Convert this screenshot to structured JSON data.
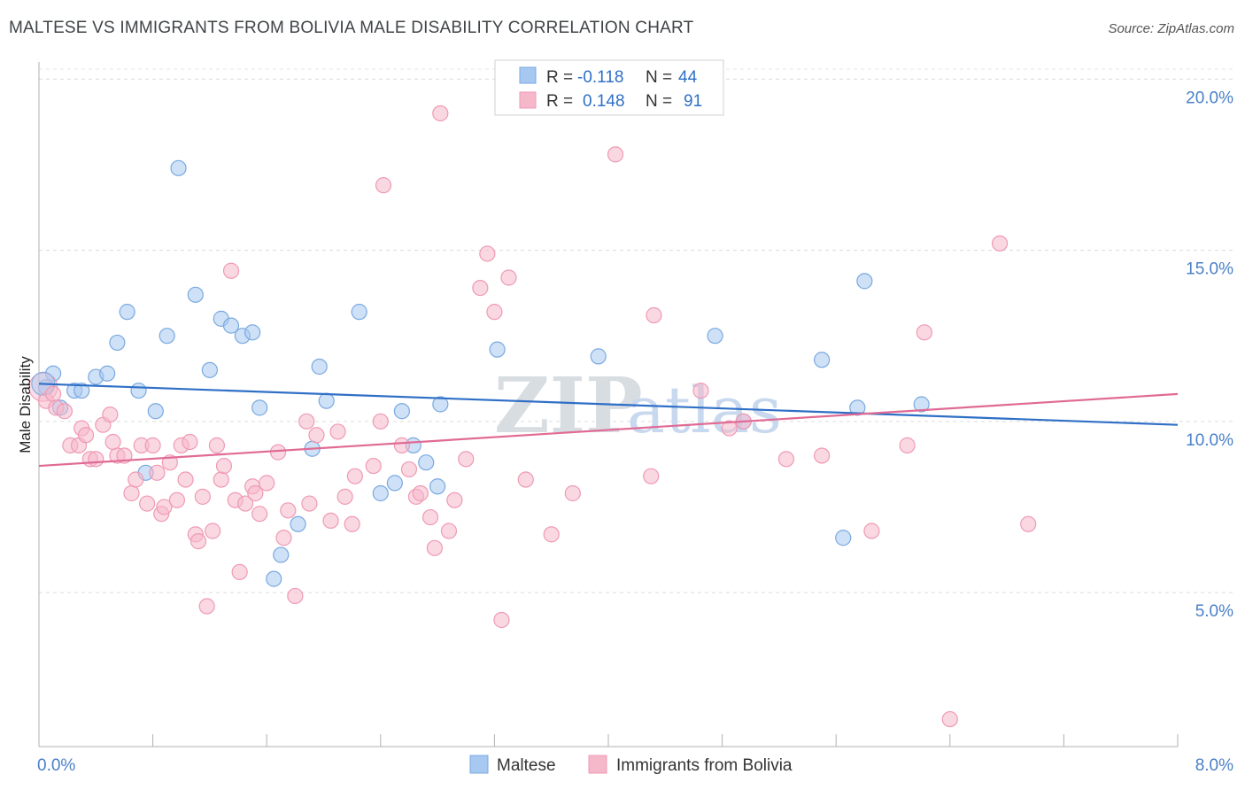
{
  "title": "MALTESE VS IMMIGRANTS FROM BOLIVIA MALE DISABILITY CORRELATION CHART",
  "source": "Source: ZipAtlas.com",
  "watermark": {
    "zip": "ZIP",
    "atlas": "atlas"
  },
  "chart_data": {
    "type": "scatter",
    "xlabel": "",
    "ylabel": "Male Disability",
    "xlim": [
      0,
      8
    ],
    "ylim": [
      0.5,
      20.5
    ],
    "x_tick_labels": [
      "0.0%",
      "8.0%"
    ],
    "y_ticks": [
      {
        "value": 5,
        "label": "5.0%"
      },
      {
        "value": 10,
        "label": "10.0%"
      },
      {
        "value": 15,
        "label": "15.0%"
      },
      {
        "value": 20,
        "label": "20.0%"
      }
    ],
    "grid": "horizontal-dashed",
    "legend": {
      "placement": "top-center",
      "entries": [
        {
          "r_label": "R =",
          "r_value": "-0.118",
          "n_label": "N =",
          "n_value": "44"
        },
        {
          "r_label": "R =",
          "r_value": "0.148",
          "n_label": "N =",
          "n_value": "91"
        }
      ]
    },
    "series": [
      {
        "name": "Maltese",
        "color": "#a7c8f0",
        "stroke": "#7aa9e0",
        "trend_color": "#2f6fc6",
        "trend": [
          [
            0,
            11.1
          ],
          [
            8,
            9.9
          ]
        ],
        "points": [
          [
            0.05,
            11.0
          ],
          [
            0.1,
            11.4
          ],
          [
            0.15,
            10.4
          ],
          [
            0.25,
            10.9
          ],
          [
            0.3,
            10.9
          ],
          [
            0.4,
            11.3
          ],
          [
            0.48,
            11.4
          ],
          [
            0.55,
            12.3
          ],
          [
            0.62,
            13.2
          ],
          [
            0.7,
            10.9
          ],
          [
            0.75,
            8.5
          ],
          [
            0.82,
            10.3
          ],
          [
            0.9,
            12.5
          ],
          [
            0.98,
            17.4
          ],
          [
            1.1,
            13.7
          ],
          [
            1.2,
            11.5
          ],
          [
            1.28,
            13.0
          ],
          [
            1.35,
            12.8
          ],
          [
            1.43,
            12.5
          ],
          [
            1.5,
            12.6
          ],
          [
            1.55,
            10.4
          ],
          [
            1.65,
            5.4
          ],
          [
            1.7,
            6.1
          ],
          [
            1.82,
            7.0
          ],
          [
            1.92,
            9.2
          ],
          [
            1.97,
            11.6
          ],
          [
            2.02,
            10.6
          ],
          [
            2.25,
            13.2
          ],
          [
            2.4,
            7.9
          ],
          [
            2.5,
            8.2
          ],
          [
            2.55,
            10.3
          ],
          [
            2.63,
            9.3
          ],
          [
            2.72,
            8.8
          ],
          [
            2.8,
            8.1
          ],
          [
            2.82,
            10.5
          ],
          [
            3.22,
            12.1
          ],
          [
            3.93,
            11.9
          ],
          [
            4.75,
            12.5
          ],
          [
            4.95,
            10.0
          ],
          [
            5.5,
            11.8
          ],
          [
            5.65,
            6.6
          ],
          [
            5.75,
            10.4
          ],
          [
            5.8,
            14.1
          ],
          [
            6.2,
            10.5
          ]
        ]
      },
      {
        "name": "Immigrants from Bolivia",
        "color": "#f5b8cb",
        "stroke": "#ef9ab5",
        "trend_color": "#e06a94",
        "trend": [
          [
            0,
            8.7
          ],
          [
            8,
            10.8
          ]
        ],
        "points": [
          [
            0.05,
            10.6
          ],
          [
            0.1,
            10.8
          ],
          [
            0.12,
            10.4
          ],
          [
            0.18,
            10.3
          ],
          [
            0.22,
            9.3
          ],
          [
            0.28,
            9.3
          ],
          [
            0.3,
            9.8
          ],
          [
            0.33,
            9.6
          ],
          [
            0.36,
            8.9
          ],
          [
            0.4,
            8.9
          ],
          [
            0.45,
            9.9
          ],
          [
            0.5,
            10.2
          ],
          [
            0.52,
            9.4
          ],
          [
            0.55,
            9.0
          ],
          [
            0.6,
            9.0
          ],
          [
            0.65,
            7.9
          ],
          [
            0.68,
            8.3
          ],
          [
            0.72,
            9.3
          ],
          [
            0.76,
            7.6
          ],
          [
            0.8,
            9.3
          ],
          [
            0.83,
            8.5
          ],
          [
            0.86,
            7.3
          ],
          [
            0.88,
            7.5
          ],
          [
            0.92,
            8.8
          ],
          [
            0.97,
            7.7
          ],
          [
            1.0,
            9.3
          ],
          [
            1.03,
            8.3
          ],
          [
            1.06,
            9.4
          ],
          [
            1.1,
            6.7
          ],
          [
            1.12,
            6.5
          ],
          [
            1.15,
            7.8
          ],
          [
            1.18,
            4.6
          ],
          [
            1.22,
            6.8
          ],
          [
            1.25,
            9.3
          ],
          [
            1.28,
            8.3
          ],
          [
            1.3,
            8.7
          ],
          [
            1.35,
            14.4
          ],
          [
            1.38,
            7.7
          ],
          [
            1.41,
            5.6
          ],
          [
            1.45,
            7.6
          ],
          [
            1.5,
            8.1
          ],
          [
            1.52,
            7.9
          ],
          [
            1.55,
            7.3
          ],
          [
            1.6,
            8.2
          ],
          [
            1.68,
            9.1
          ],
          [
            1.72,
            6.6
          ],
          [
            1.75,
            7.4
          ],
          [
            1.8,
            4.9
          ],
          [
            1.88,
            10.0
          ],
          [
            1.9,
            7.6
          ],
          [
            1.95,
            9.6
          ],
          [
            2.05,
            7.1
          ],
          [
            2.1,
            9.7
          ],
          [
            2.15,
            7.8
          ],
          [
            2.2,
            7.0
          ],
          [
            2.22,
            8.4
          ],
          [
            2.35,
            8.7
          ],
          [
            2.4,
            10.0
          ],
          [
            2.42,
            16.9
          ],
          [
            2.55,
            9.3
          ],
          [
            2.6,
            8.6
          ],
          [
            2.65,
            7.8
          ],
          [
            2.68,
            7.9
          ],
          [
            2.75,
            7.2
          ],
          [
            2.78,
            6.3
          ],
          [
            2.82,
            19.0
          ],
          [
            2.88,
            6.8
          ],
          [
            2.92,
            7.7
          ],
          [
            3.0,
            8.9
          ],
          [
            3.1,
            13.9
          ],
          [
            3.15,
            14.9
          ],
          [
            3.2,
            13.2
          ],
          [
            3.25,
            4.2
          ],
          [
            3.3,
            14.2
          ],
          [
            3.42,
            8.3
          ],
          [
            3.6,
            6.7
          ],
          [
            3.75,
            7.9
          ],
          [
            4.05,
            17.8
          ],
          [
            4.3,
            8.4
          ],
          [
            4.32,
            13.1
          ],
          [
            4.65,
            10.9
          ],
          [
            4.85,
            9.8
          ],
          [
            4.95,
            10.0
          ],
          [
            5.25,
            8.9
          ],
          [
            5.5,
            9.0
          ],
          [
            5.85,
            6.8
          ],
          [
            6.1,
            9.3
          ],
          [
            6.22,
            12.6
          ],
          [
            6.4,
            1.3
          ],
          [
            6.75,
            15.2
          ],
          [
            6.95,
            7.0
          ]
        ]
      }
    ]
  }
}
